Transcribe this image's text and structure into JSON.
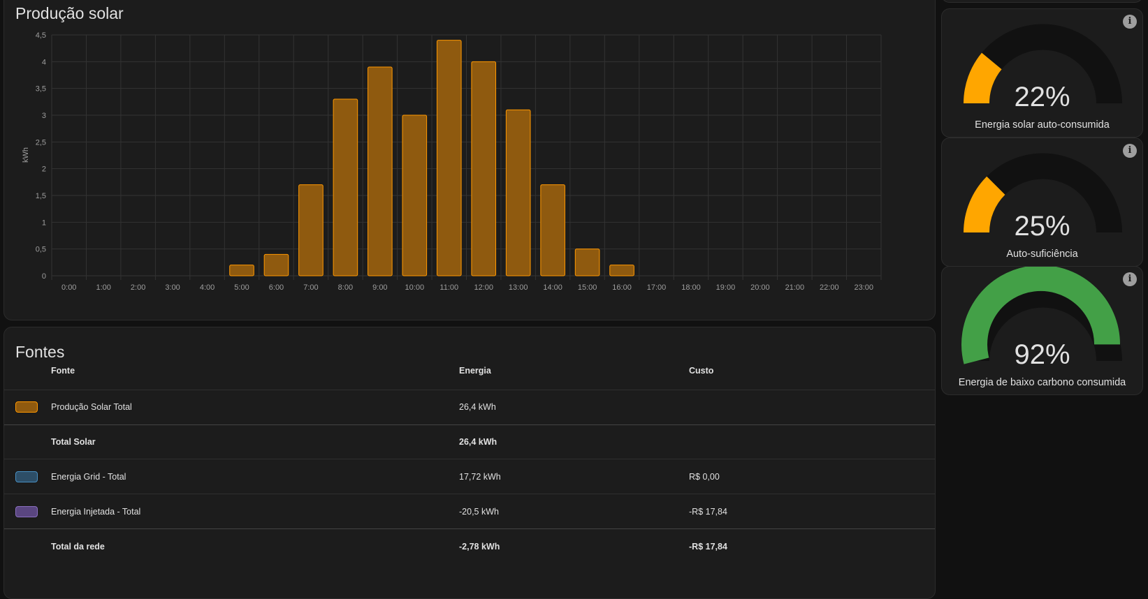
{
  "chart_card": {
    "title": "Produção solar",
    "chart_data": {
      "type": "bar",
      "ylabel": "kWh",
      "xlabel": "",
      "ylim": [
        0,
        4.5
      ],
      "yticks": [
        "0",
        "0,5",
        "1",
        "1,5",
        "2",
        "2,5",
        "3",
        "3,5",
        "4",
        "4,5"
      ],
      "categories": [
        "0:00",
        "1:00",
        "2:00",
        "3:00",
        "4:00",
        "5:00",
        "6:00",
        "7:00",
        "8:00",
        "9:00",
        "10:00",
        "11:00",
        "12:00",
        "13:00",
        "14:00",
        "15:00",
        "16:00",
        "17:00",
        "18:00",
        "19:00",
        "20:00",
        "21:00",
        "22:00",
        "23:00"
      ],
      "series": [
        {
          "values": [
            0,
            0,
            0,
            0,
            0,
            0.2,
            0.4,
            1.7,
            3.3,
            3.9,
            3.0,
            4.4,
            4.0,
            3.1,
            1.7,
            0.5,
            0.2,
            0,
            0,
            0,
            0,
            0,
            0,
            0
          ]
        }
      ],
      "grid": true,
      "bar_fill": "#8f5a0f",
      "bar_stroke": "#ff9800"
    }
  },
  "sources": {
    "title": "Fontes",
    "headers": {
      "source": "Fonte",
      "energy": "Energia",
      "cost": "Custo"
    },
    "rows": [
      {
        "name": "Produção Solar Total",
        "energy": "26,4 kWh",
        "cost": "",
        "color": "#ff9800"
      },
      {
        "name": "Total Solar",
        "energy": "26,4 kWh",
        "cost": ""
      },
      {
        "name": "Energia Grid - Total",
        "energy": "17,72 kWh",
        "cost": "R$ 0,00",
        "color": "#488fc2"
      },
      {
        "name": "Energia Injetada - Total",
        "energy": "-20,5 kWh",
        "cost": "-R$ 17,84",
        "color": "#8353d4"
      },
      {
        "name": "Total da rede",
        "energy": "-2,78 kWh",
        "cost": "-R$ 17,84"
      }
    ]
  },
  "gauges": [
    {
      "value": "22%",
      "label": "Energia solar auto-consumida",
      "fraction": 0.22,
      "color": "#ffa600"
    },
    {
      "value": "25%",
      "label": "Auto-suficiência",
      "fraction": 0.25,
      "color": "#ffa600"
    },
    {
      "value": "92%",
      "label": "Energia de baixo carbono consumida",
      "fraction": 0.92,
      "color": "#43a047"
    }
  ],
  "info_icon": "i"
}
